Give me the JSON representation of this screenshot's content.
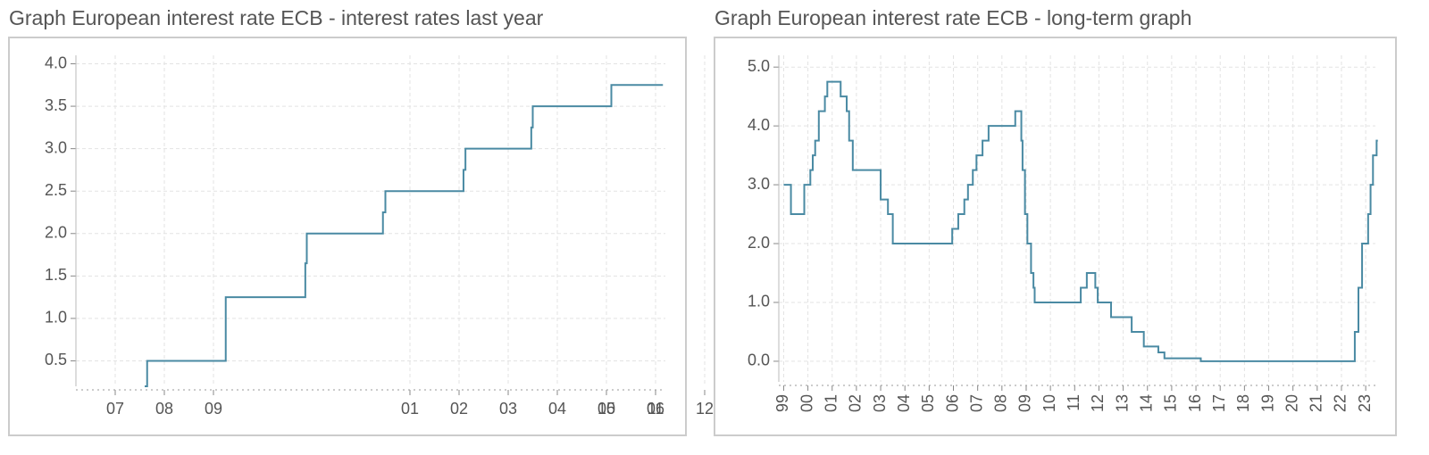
{
  "chart_data": [
    {
      "type": "line",
      "title": "Graph European interest rate ECB - interest rates last year",
      "step": true,
      "color": "#4a8aa3",
      "grid": true,
      "x": [
        0.6,
        0.65,
        2.25,
        3.87,
        3.9,
        5.45,
        5.5,
        7.09,
        7.13,
        8.47,
        8.5,
        10.1,
        11.15
      ],
      "values": [
        0.2,
        0.5,
        1.25,
        1.65,
        2.0,
        2.25,
        2.5,
        2.75,
        3.0,
        3.25,
        3.5,
        3.75,
        3.75
      ],
      "xlim": [
        -0.8,
        11.2
      ],
      "xticks": [
        {
          "value": 0,
          "label": "07"
        },
        {
          "value": 1,
          "label": "08"
        },
        {
          "value": 2,
          "label": "09"
        },
        10,
        11,
        12,
        {
          "value": 6,
          "label": "01"
        },
        {
          "value": 7,
          "label": "02"
        },
        {
          "value": 8,
          "label": "03"
        },
        {
          "value": 9,
          "label": "04"
        },
        {
          "value": 10,
          "label": "05"
        },
        {
          "value": 11,
          "label": "06"
        }
      ],
      "ylim": [
        0.2,
        4.1
      ],
      "yticks": [
        0.5,
        {
          "value": 1,
          "label": "1.0"
        },
        1.5,
        {
          "value": 2,
          "label": "2.0"
        },
        2.5,
        {
          "value": 3,
          "label": "3.0"
        },
        3.5,
        {
          "value": 4,
          "label": "4.0"
        }
      ]
    },
    {
      "type": "line",
      "title": "Graph European interest rate ECB - long-term graph",
      "step": true,
      "color": "#4a8aa3",
      "grid": true,
      "rotate_x_labels": true,
      "x": [
        1999.0,
        1999.3,
        1999.85,
        2000.1,
        2000.2,
        2000.3,
        2000.45,
        2000.7,
        2000.8,
        2001.35,
        2001.6,
        2001.7,
        2001.85,
        2003.0,
        2003.3,
        2003.5,
        2005.95,
        2006.2,
        2006.45,
        2006.6,
        2006.8,
        2006.95,
        2007.2,
        2007.45,
        2008.55,
        2008.8,
        2008.85,
        2008.95,
        2009.05,
        2009.2,
        2009.3,
        2009.35,
        2011.25,
        2011.5,
        2011.85,
        2011.95,
        2012.5,
        2013.35,
        2013.85,
        2014.45,
        2014.7,
        2016.2,
        2022.55,
        2022.7,
        2022.85,
        2023.1,
        2023.2,
        2023.3,
        2023.45,
        2023.5
      ],
      "values": [
        3.0,
        2.5,
        3.0,
        3.25,
        3.5,
        3.75,
        4.25,
        4.5,
        4.75,
        4.5,
        4.25,
        3.75,
        3.25,
        2.75,
        2.5,
        2.0,
        2.25,
        2.5,
        2.75,
        3.0,
        3.25,
        3.5,
        3.75,
        4.0,
        4.25,
        3.75,
        3.25,
        2.5,
        2.0,
        1.5,
        1.25,
        1.0,
        1.25,
        1.5,
        1.25,
        1.0,
        0.75,
        0.5,
        0.25,
        0.15,
        0.05,
        0.0,
        0.5,
        1.25,
        2.0,
        2.5,
        3.0,
        3.5,
        3.75,
        3.75
      ],
      "xlim": [
        1998.8,
        2023.4
      ],
      "xticks": [
        {
          "value": 1999,
          "label": "99"
        },
        {
          "value": 2000,
          "label": "00"
        },
        {
          "value": 2001,
          "label": "01"
        },
        {
          "value": 2002,
          "label": "02"
        },
        {
          "value": 2003,
          "label": "03"
        },
        {
          "value": 2004,
          "label": "04"
        },
        {
          "value": 2005,
          "label": "05"
        },
        {
          "value": 2006,
          "label": "06"
        },
        {
          "value": 2007,
          "label": "07"
        },
        {
          "value": 2008,
          "label": "08"
        },
        {
          "value": 2009,
          "label": "09"
        },
        {
          "value": 2010,
          "label": "10"
        },
        {
          "value": 2011,
          "label": "11"
        },
        {
          "value": 2012,
          "label": "12"
        },
        {
          "value": 2013,
          "label": "13"
        },
        {
          "value": 2014,
          "label": "14"
        },
        {
          "value": 2015,
          "label": "15"
        },
        {
          "value": 2016,
          "label": "16"
        },
        {
          "value": 2017,
          "label": "17"
        },
        {
          "value": 2018,
          "label": "18"
        },
        {
          "value": 2019,
          "label": "19"
        },
        {
          "value": 2020,
          "label": "20"
        },
        {
          "value": 2021,
          "label": "21"
        },
        {
          "value": 2022,
          "label": "22"
        },
        {
          "value": 2023,
          "label": "23"
        }
      ],
      "ylim": [
        -0.35,
        5.2
      ],
      "yticks": [
        {
          "value": 0,
          "label": "0.0"
        },
        {
          "value": 1,
          "label": "1.0"
        },
        {
          "value": 2,
          "label": "2.0"
        },
        {
          "value": 3,
          "label": "3.0"
        },
        {
          "value": 4,
          "label": "4.0"
        },
        {
          "value": 5,
          "label": "5.0"
        }
      ]
    }
  ]
}
